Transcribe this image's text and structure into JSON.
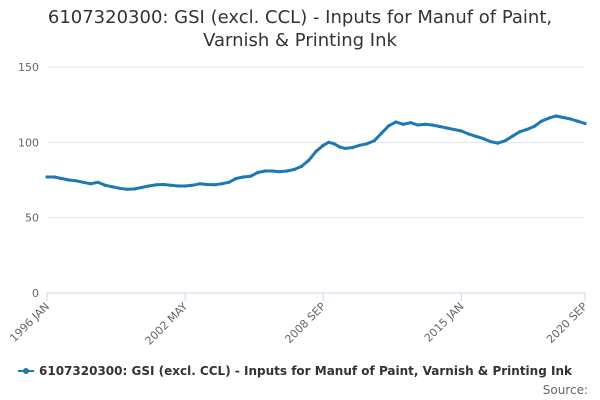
{
  "title_lines": [
    "6107320300: GSI (excl. CCL) - Inputs for Manuf of Paint,",
    "Varnish & Printing Ink"
  ],
  "source_label": "Source:",
  "colors": {
    "series": "#1f78b4",
    "grid": "#e6e6e6",
    "axis": "#ccd6eb",
    "text": "#666666"
  },
  "chart_data": {
    "type": "line",
    "title": "6107320300: GSI (excl. CCL) - Inputs for Manuf of Paint, Varnish & Printing Ink",
    "xlabel": "",
    "ylabel": "",
    "x_range": [
      "1996-01",
      "2020-09"
    ],
    "ylim": [
      0,
      150
    ],
    "y_ticks": [
      0,
      50,
      100,
      150
    ],
    "x_ticks": [
      {
        "label": "1996 JAN",
        "date": "1996-01"
      },
      {
        "label": "2002 MAY",
        "date": "2002-05"
      },
      {
        "label": "2008 SEP",
        "date": "2008-09"
      },
      {
        "label": "2015 JAN",
        "date": "2015-01"
      },
      {
        "label": "2020 SEP",
        "date": "2020-09"
      }
    ],
    "grid": true,
    "legend_position": "bottom",
    "series": [
      {
        "name": "6107320300: GSI (excl. CCL) - Inputs for Manuf of Paint, Varnish & Printing Ink",
        "points": [
          [
            "1996-01",
            77
          ],
          [
            "1996-05",
            77
          ],
          [
            "1996-09",
            76
          ],
          [
            "1997-01",
            75
          ],
          [
            "1997-05",
            74.5
          ],
          [
            "1997-09",
            73.5
          ],
          [
            "1998-01",
            72.5
          ],
          [
            "1998-05",
            73.5
          ],
          [
            "1998-09",
            71.5
          ],
          [
            "1999-01",
            70.5
          ],
          [
            "1999-05",
            69.5
          ],
          [
            "1999-09",
            68.8
          ],
          [
            "2000-01",
            69
          ],
          [
            "2000-05",
            70
          ],
          [
            "2000-09",
            71
          ],
          [
            "2001-01",
            71.8
          ],
          [
            "2001-05",
            72
          ],
          [
            "2001-09",
            71.5
          ],
          [
            "2002-01",
            71
          ],
          [
            "2002-05",
            71
          ],
          [
            "2002-09",
            71.5
          ],
          [
            "2003-01",
            72.5
          ],
          [
            "2003-05",
            72
          ],
          [
            "2003-09",
            71.8
          ],
          [
            "2004-01",
            72.5
          ],
          [
            "2004-05",
            73.5
          ],
          [
            "2004-09",
            76
          ],
          [
            "2005-01",
            77
          ],
          [
            "2005-05",
            77.5
          ],
          [
            "2005-09",
            80
          ],
          [
            "2006-01",
            81
          ],
          [
            "2006-05",
            81
          ],
          [
            "2006-09",
            80.5
          ],
          [
            "2007-01",
            81
          ],
          [
            "2007-05",
            82
          ],
          [
            "2007-09",
            84
          ],
          [
            "2008-01",
            88
          ],
          [
            "2008-05",
            94
          ],
          [
            "2008-09",
            98
          ],
          [
            "2008-12",
            100
          ],
          [
            "2009-03",
            99
          ],
          [
            "2009-06",
            97
          ],
          [
            "2009-09",
            96
          ],
          [
            "2010-01",
            96.5
          ],
          [
            "2010-05",
            98
          ],
          [
            "2010-09",
            99
          ],
          [
            "2011-01",
            101
          ],
          [
            "2011-05",
            106
          ],
          [
            "2011-09",
            111
          ],
          [
            "2012-01",
            113.5
          ],
          [
            "2012-05",
            112
          ],
          [
            "2012-09",
            113
          ],
          [
            "2013-01",
            111.5
          ],
          [
            "2013-05",
            112
          ],
          [
            "2013-09",
            111.5
          ],
          [
            "2014-01",
            110.5
          ],
          [
            "2014-05",
            109.5
          ],
          [
            "2014-09",
            108.5
          ],
          [
            "2015-01",
            107.5
          ],
          [
            "2015-05",
            105.5
          ],
          [
            "2015-09",
            104
          ],
          [
            "2016-01",
            102.5
          ],
          [
            "2016-05",
            100.5
          ],
          [
            "2016-09",
            99.5
          ],
          [
            "2017-01",
            101
          ],
          [
            "2017-05",
            104
          ],
          [
            "2017-09",
            107
          ],
          [
            "2018-01",
            108.5
          ],
          [
            "2018-05",
            110.5
          ],
          [
            "2018-09",
            114
          ],
          [
            "2019-01",
            116
          ],
          [
            "2019-05",
            117.5
          ],
          [
            "2019-09",
            116.5
          ],
          [
            "2020-01",
            115.5
          ],
          [
            "2020-05",
            114
          ],
          [
            "2020-09",
            112.5
          ]
        ]
      }
    ]
  }
}
